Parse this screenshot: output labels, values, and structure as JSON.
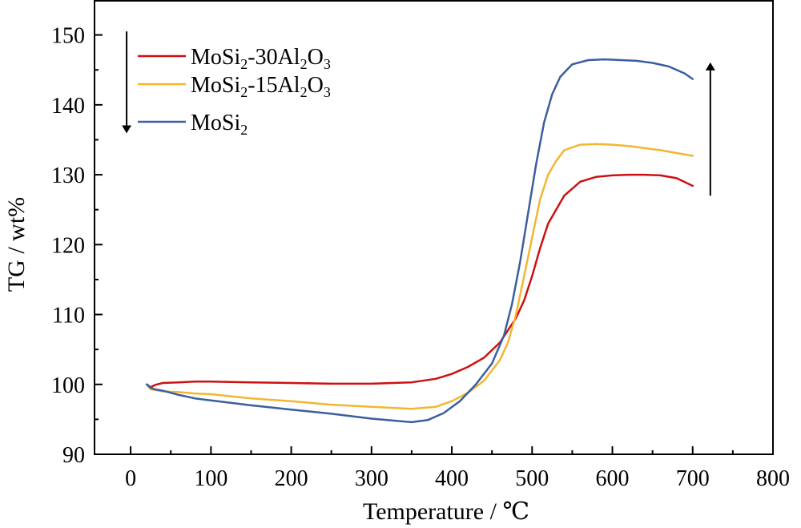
{
  "chart_data": {
    "type": "line",
    "title": "",
    "xlabel": "Temperature / ℃",
    "ylabel": "TG / wt%",
    "xlim": [
      -45,
      800
    ],
    "ylim": [
      90,
      155
    ],
    "x_ticks": [
      0,
      100,
      200,
      300,
      400,
      500,
      600,
      700,
      800
    ],
    "y_ticks": [
      90,
      100,
      110,
      120,
      130,
      140,
      150
    ],
    "x_tick_labels": [
      "0",
      "100",
      "200",
      "300",
      "400",
      "500",
      "600",
      "700",
      "800"
    ],
    "y_tick_labels": [
      "90",
      "100",
      "110",
      "120",
      "130",
      "140",
      "150"
    ],
    "grid": false,
    "legend_position": "top-left",
    "legend_entries": [
      {
        "base": "MoSi",
        "sub1": "2",
        "mid": "-30Al",
        "sub2": "2",
        "mid2": "O",
        "sub3": "3"
      },
      {
        "base": "MoSi",
        "sub1": "2",
        "mid": "-15Al",
        "sub2": "2",
        "mid2": "O",
        "sub3": "3"
      },
      {
        "base": "MoSi",
        "sub1": "2",
        "mid": "",
        "sub2": "",
        "mid2": "",
        "sub3": ""
      }
    ],
    "annotations": [
      {
        "type": "arrow",
        "direction": "down",
        "position": "left, beside legend"
      },
      {
        "type": "arrow",
        "direction": "up",
        "position": "right, near 720 ℃"
      }
    ],
    "series": [
      {
        "name": "MoSi2-30Al2O3",
        "color": "#cc1111",
        "x": [
          20,
          25,
          30,
          40,
          60,
          80,
          100,
          150,
          200,
          250,
          300,
          350,
          380,
          400,
          420,
          440,
          460,
          480,
          490,
          500,
          510,
          520,
          540,
          560,
          580,
          600,
          620,
          640,
          660,
          680,
          700
        ],
        "y": [
          100.0,
          99.6,
          99.9,
          100.2,
          100.3,
          100.4,
          100.4,
          100.3,
          100.2,
          100.1,
          100.1,
          100.3,
          100.8,
          101.5,
          102.5,
          103.8,
          106.0,
          109.5,
          112.0,
          115.5,
          119.5,
          123.0,
          127.0,
          129.0,
          129.7,
          129.9,
          130.0,
          130.0,
          129.9,
          129.5,
          128.4
        ]
      },
      {
        "name": "MoSi2-15Al2O3",
        "color": "#f2b632",
        "x": [
          20,
          25,
          30,
          40,
          60,
          80,
          100,
          150,
          200,
          250,
          300,
          350,
          380,
          400,
          420,
          440,
          460,
          470,
          480,
          490,
          500,
          510,
          520,
          530,
          540,
          560,
          580,
          600,
          620,
          640,
          660,
          680,
          700
        ],
        "y": [
          100.0,
          99.3,
          99.2,
          99.0,
          98.9,
          98.7,
          98.6,
          98.0,
          97.6,
          97.1,
          96.8,
          96.5,
          96.8,
          97.6,
          98.8,
          100.5,
          103.5,
          106.0,
          110.0,
          115.5,
          121.0,
          126.5,
          130.0,
          132.0,
          133.5,
          134.3,
          134.4,
          134.3,
          134.1,
          133.8,
          133.5,
          133.1,
          132.7
        ]
      },
      {
        "name": "MoSi2",
        "color": "#3b5f9e",
        "x": [
          20,
          25,
          30,
          40,
          60,
          80,
          100,
          150,
          200,
          250,
          300,
          350,
          370,
          390,
          410,
          430,
          450,
          465,
          475,
          485,
          495,
          505,
          515,
          525,
          535,
          550,
          570,
          590,
          610,
          630,
          650,
          670,
          690,
          700
        ],
        "y": [
          100.0,
          99.5,
          99.3,
          99.1,
          98.5,
          98.0,
          97.7,
          97.0,
          96.4,
          95.8,
          95.1,
          94.6,
          94.9,
          95.9,
          97.6,
          100.0,
          103.0,
          107.0,
          111.5,
          117.5,
          124.5,
          131.5,
          137.5,
          141.5,
          144.0,
          145.8,
          146.4,
          146.5,
          146.4,
          146.3,
          146.0,
          145.5,
          144.5,
          143.7
        ]
      }
    ]
  }
}
